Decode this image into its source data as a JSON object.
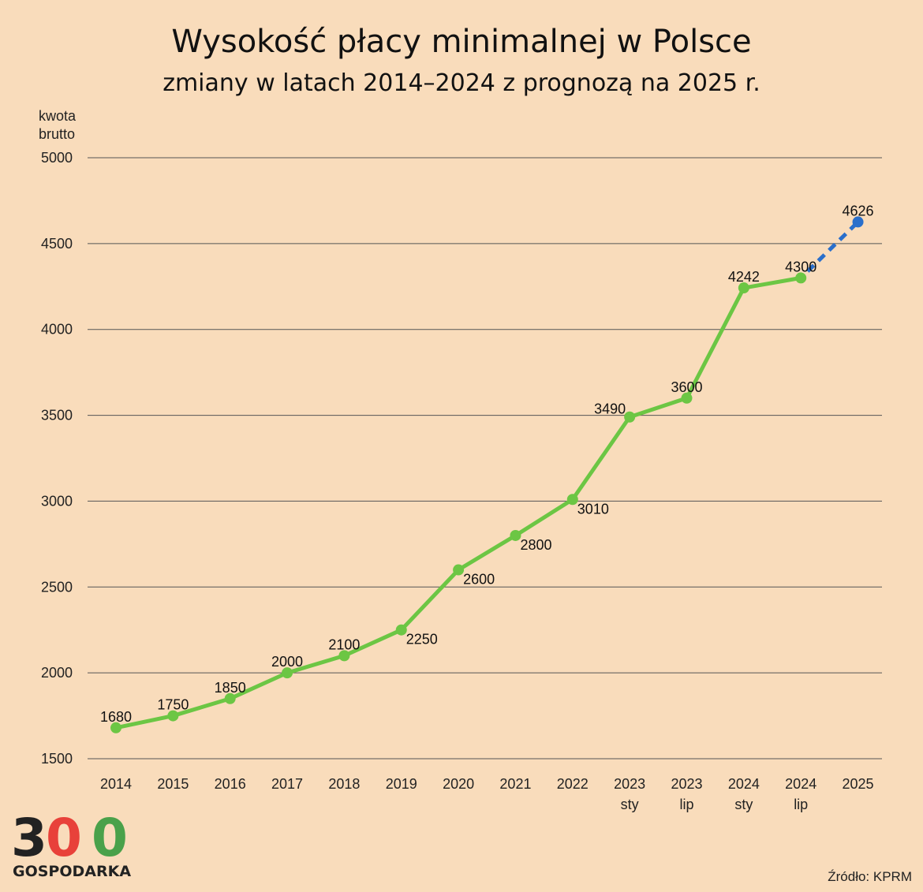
{
  "title": "Wysokość płacy minimalnej w Polsce",
  "subtitle": "zmiany w latach 2014–2024 z prognozą na 2025 r.",
  "source": "Źródło: KPRM",
  "logo": {
    "digit1": "3",
    "digit2": "0",
    "digit3": "0",
    "text": "GOSPODARKA",
    "colors": [
      "#222222",
      "#e8413a",
      "#4aa14a"
    ]
  },
  "colors": {
    "background": "#f9dcbb",
    "line": "#6cc644",
    "forecast": "#2a6fcb",
    "grid": "#555555"
  },
  "chart_data": {
    "type": "line",
    "ylabel_lines": [
      "kwota",
      "brutto"
    ],
    "ylim": [
      1500,
      5000
    ],
    "yticks": [
      1500,
      2000,
      2500,
      3000,
      3500,
      4000,
      4500,
      5000
    ],
    "grid": true,
    "categories": [
      [
        "2014"
      ],
      [
        "2015"
      ],
      [
        "2016"
      ],
      [
        "2017"
      ],
      [
        "2018"
      ],
      [
        "2019"
      ],
      [
        "2020"
      ],
      [
        "2021"
      ],
      [
        "2022"
      ],
      [
        "2023",
        "sty"
      ],
      [
        "2023",
        "lip"
      ],
      [
        "2024",
        "sty"
      ],
      [
        "2024",
        "lip"
      ],
      [
        "2025"
      ]
    ],
    "series": [
      {
        "values": [
          1680,
          1750,
          1850,
          2000,
          2100,
          2250,
          2600,
          2800,
          3010,
          3490,
          3600,
          4242,
          4300,
          null
        ],
        "labels": [
          "1680",
          "1750",
          "1850",
          "2000",
          "2100",
          "2250",
          "2600",
          "2800",
          "3010",
          "3490",
          "3600",
          "4242",
          "4300",
          null
        ],
        "label_positions": [
          "above",
          "above",
          "above",
          "above",
          "above",
          "right-below",
          "right-below",
          "right-below",
          "right-below",
          "left-above",
          "above",
          "above",
          "above",
          null
        ]
      },
      {
        "style": "dashed",
        "values": [
          null,
          null,
          null,
          null,
          null,
          null,
          null,
          null,
          null,
          null,
          null,
          null,
          4300,
          4626
        ],
        "labels": [
          null,
          null,
          null,
          null,
          null,
          null,
          null,
          null,
          null,
          null,
          null,
          null,
          null,
          "4626"
        ],
        "label_positions": [
          null,
          null,
          null,
          null,
          null,
          null,
          null,
          null,
          null,
          null,
          null,
          null,
          null,
          "above"
        ]
      }
    ]
  }
}
